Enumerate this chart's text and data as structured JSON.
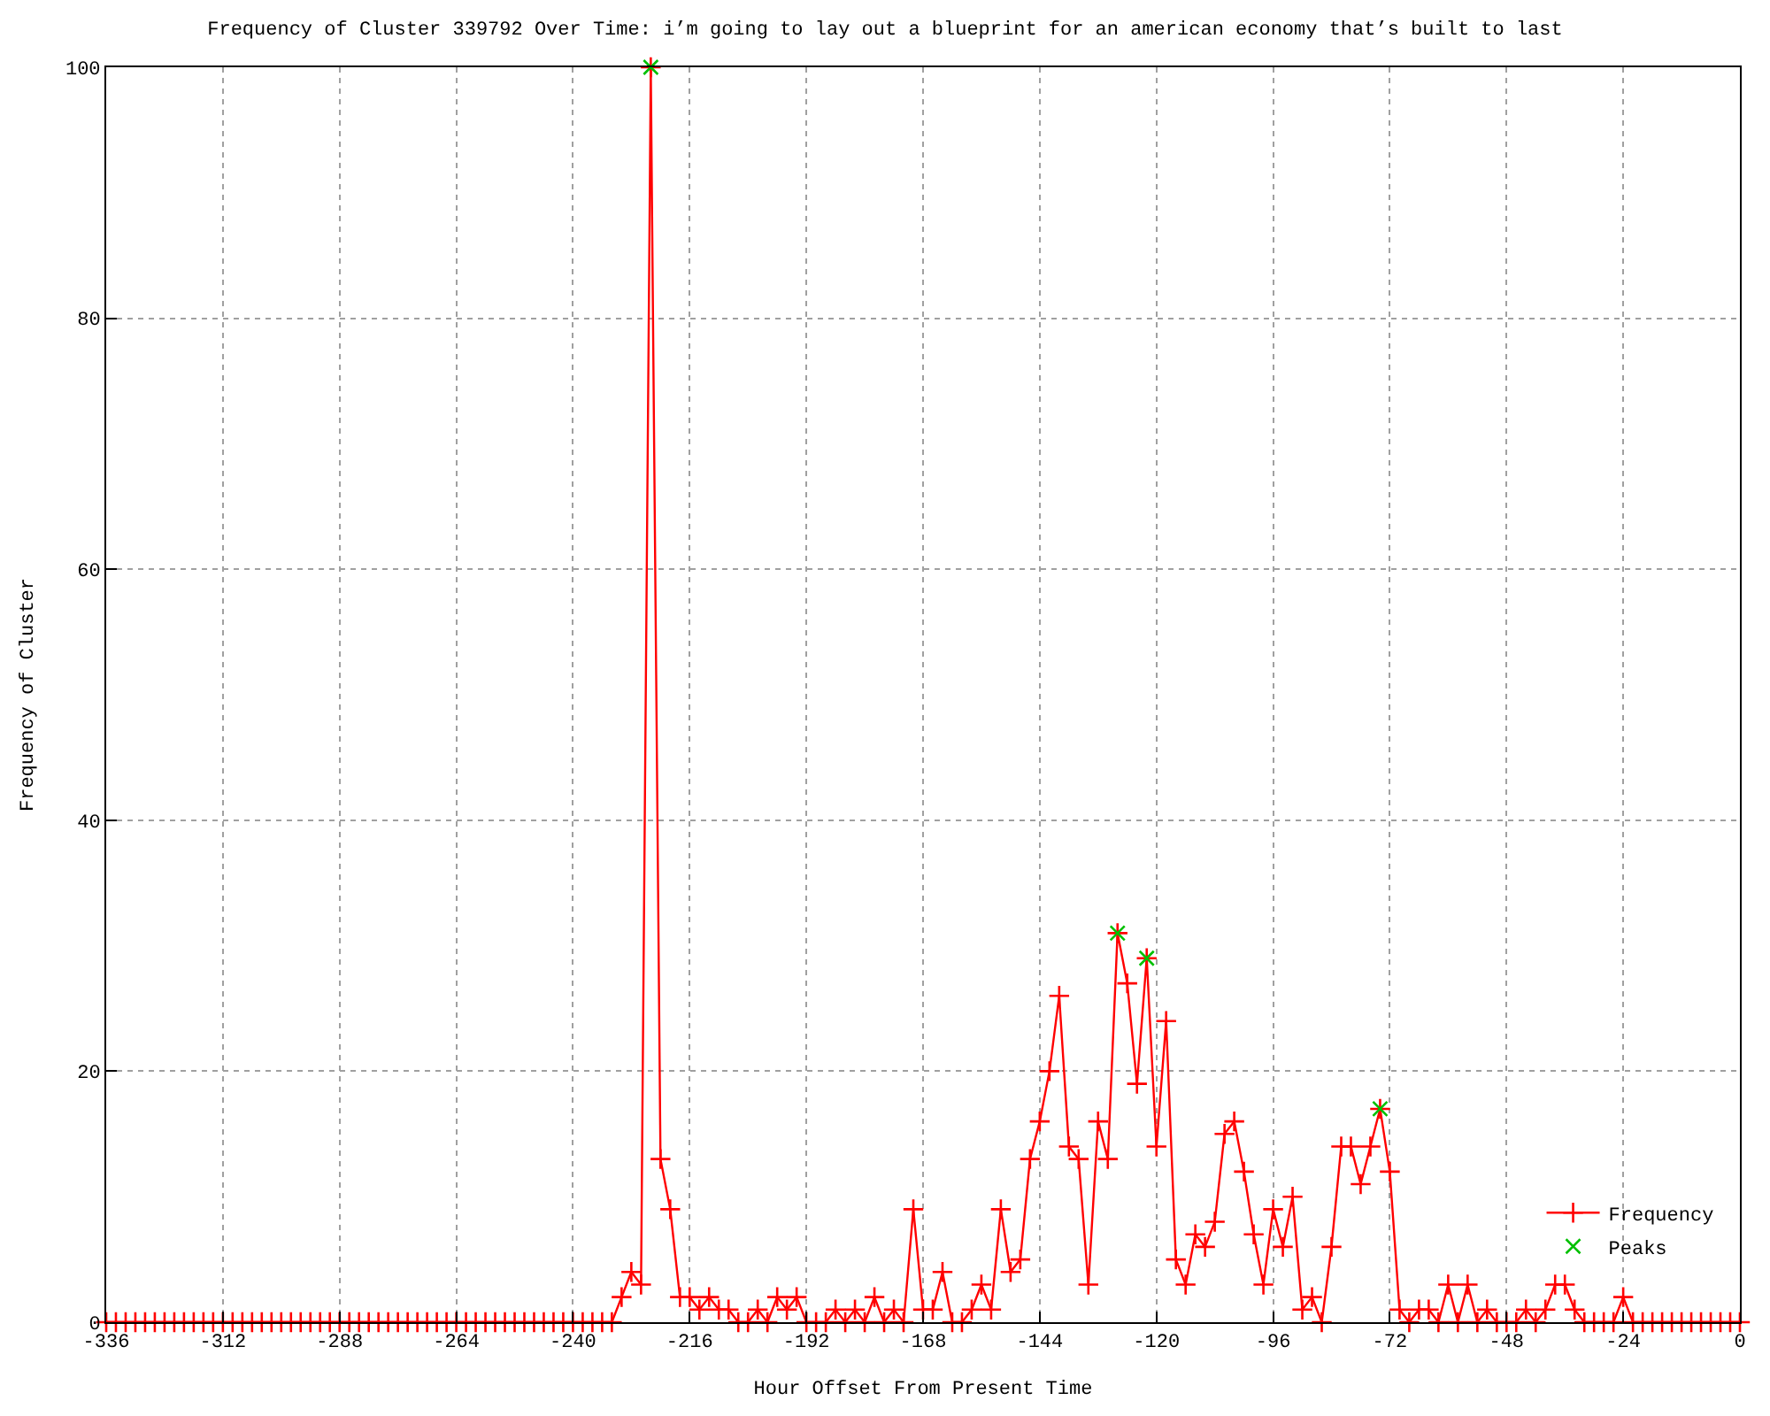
{
  "chart_data": {
    "type": "line",
    "title": "Frequency of Cluster 339792 Over Time: i’m going to lay out a blueprint for an american economy that’s built to last",
    "xlabel": "Hour Offset From Present Time",
    "ylabel": "Frequency of Cluster",
    "x": [
      -336,
      -334,
      -332,
      -330,
      -328,
      -326,
      -324,
      -322,
      -320,
      -318,
      -316,
      -314,
      -312,
      -310,
      -308,
      -306,
      -304,
      -302,
      -300,
      -298,
      -296,
      -294,
      -292,
      -290,
      -288,
      -286,
      -284,
      -282,
      -280,
      -278,
      -276,
      -274,
      -272,
      -270,
      -268,
      -266,
      -264,
      -262,
      -260,
      -258,
      -256,
      -254,
      -252,
      -250,
      -248,
      -246,
      -244,
      -242,
      -240,
      -238,
      -236,
      -234,
      -232,
      -230,
      -228,
      -226,
      -224,
      -222,
      -220,
      -218,
      -216,
      -214,
      -212,
      -210,
      -208,
      -206,
      -204,
      -202,
      -200,
      -198,
      -196,
      -194,
      -192,
      -190,
      -188,
      -186,
      -184,
      -182,
      -180,
      -178,
      -176,
      -174,
      -172,
      -170,
      -168,
      -166,
      -164,
      -162,
      -160,
      -158,
      -156,
      -154,
      -152,
      -150,
      -148,
      -146,
      -144,
      -142,
      -140,
      -138,
      -136,
      -134,
      -132,
      -130,
      -128,
      -126,
      -124,
      -122,
      -120,
      -118,
      -116,
      -114,
      -112,
      -110,
      -108,
      -106,
      -104,
      -102,
      -100,
      -98,
      -96,
      -94,
      -92,
      -90,
      -88,
      -86,
      -84,
      -82,
      -80,
      -78,
      -76,
      -74,
      -72,
      -70,
      -68,
      -66,
      -64,
      -62,
      -60,
      -58,
      -56,
      -54,
      -52,
      -50,
      -48,
      -46,
      -44,
      -42,
      -40,
      -38,
      -36,
      -34,
      -32,
      -30,
      -28,
      -26,
      -24,
      -22,
      -20,
      -18,
      -16,
      -14,
      -12,
      -10,
      -8,
      -6,
      -4,
      -2,
      0
    ],
    "series": [
      {
        "name": "Frequency",
        "color": "#ff0000",
        "marker": "cross",
        "values": [
          0,
          0,
          0,
          0,
          0,
          0,
          0,
          0,
          0,
          0,
          0,
          0,
          0,
          0,
          0,
          0,
          0,
          0,
          0,
          0,
          0,
          0,
          0,
          0,
          0,
          0,
          0,
          0,
          0,
          0,
          0,
          0,
          0,
          0,
          0,
          0,
          0,
          0,
          0,
          0,
          0,
          0,
          0,
          0,
          0,
          0,
          0,
          0,
          0,
          0,
          0,
          0,
          0,
          2,
          4,
          3,
          100,
          13,
          9,
          2,
          2,
          1,
          2,
          1,
          1,
          0,
          0,
          1,
          0,
          2,
          1,
          2,
          0,
          0,
          0,
          1,
          0,
          1,
          0,
          2,
          0,
          1,
          0,
          9,
          1,
          1,
          4,
          0,
          0,
          1,
          3,
          1,
          9,
          4,
          5,
          13,
          16,
          20,
          26,
          14,
          13,
          3,
          16,
          13,
          31,
          27,
          19,
          29,
          14,
          24,
          5,
          3,
          7,
          6,
          8,
          15,
          16,
          12,
          7,
          3,
          9,
          6,
          10,
          1,
          2,
          0,
          6,
          14,
          14,
          11,
          14,
          17,
          12,
          1,
          0,
          1,
          1,
          0,
          3,
          0,
          3,
          0,
          1,
          0,
          0,
          0,
          1,
          0,
          1,
          3,
          3,
          1,
          0,
          0,
          0,
          0,
          2,
          0,
          0,
          0,
          0,
          0,
          0,
          0,
          0,
          0,
          0,
          0,
          0
        ]
      },
      {
        "name": "Peaks",
        "type": "scatter",
        "color": "#00c000",
        "marker": "x",
        "x": [
          -224,
          -128,
          -122,
          -74
        ],
        "values": [
          100,
          31,
          29,
          17
        ]
      }
    ],
    "xlim": [
      -336,
      0
    ],
    "xticks": [
      -336,
      -312,
      -288,
      -264,
      -240,
      -216,
      -192,
      -168,
      -144,
      -120,
      -96,
      -72,
      -48,
      -24,
      0
    ],
    "ylim": [
      0,
      100
    ],
    "yticks": [
      0,
      20,
      40,
      60,
      80,
      100
    ],
    "grid": true,
    "legend": "bottom right"
  }
}
